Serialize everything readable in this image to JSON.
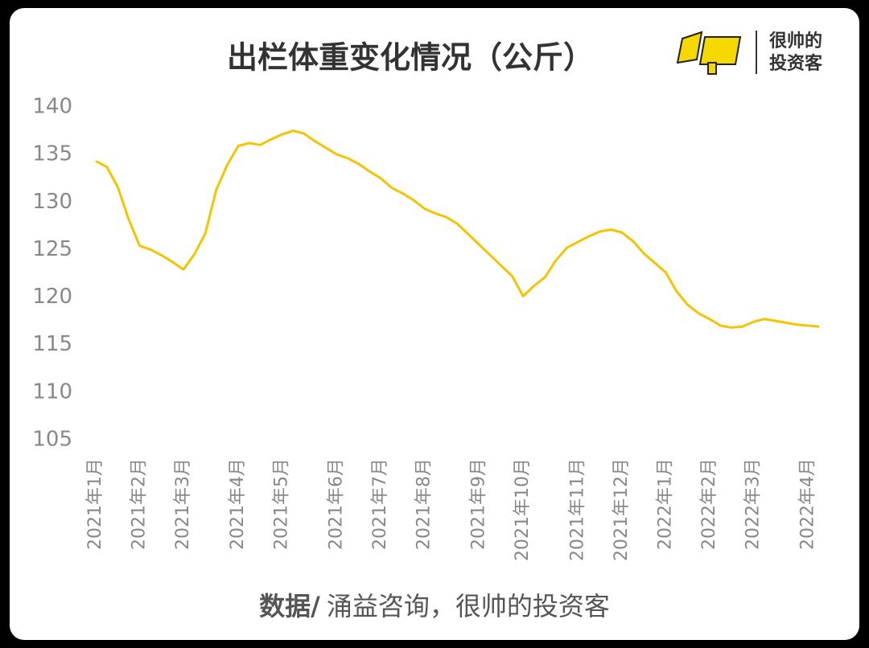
{
  "chart_data": {
    "type": "line",
    "title": "出栏体重变化情况（公斤）",
    "brand": [
      "很帅的",
      "投资客"
    ],
    "source_label": "数据/",
    "source": "涌益咨询，很帅的投资客",
    "categories": [
      "2021年1月",
      null,
      null,
      null,
      "2021年2月",
      null,
      null,
      null,
      "2021年3月",
      null,
      null,
      null,
      null,
      "2021年4月",
      null,
      null,
      null,
      "2021年5月",
      null,
      null,
      null,
      null,
      "2021年6月",
      null,
      null,
      null,
      "2021年7月",
      null,
      null,
      null,
      "2021年8月",
      null,
      null,
      null,
      null,
      "2021年9月",
      null,
      null,
      null,
      "2021年10月",
      null,
      null,
      null,
      null,
      "2021年11月",
      null,
      null,
      null,
      "2021年12月",
      null,
      null,
      null,
      "2022年1月",
      null,
      null,
      null,
      "2022年2月",
      null,
      null,
      null,
      "2022年3月",
      null,
      null,
      null,
      null,
      "2022年4月",
      null
    ],
    "series": [
      {
        "name": "出栏体重",
        "color": "#f5c400",
        "values": [
          134.3,
          133.7,
          131.6,
          128.2,
          125.4,
          125.0,
          124.4,
          123.7,
          122.9,
          124.5,
          126.7,
          131.3,
          133.9,
          135.9,
          136.2,
          136.0,
          136.6,
          137.1,
          137.5,
          137.2,
          136.4,
          135.7,
          135.0,
          134.6,
          134.0,
          133.2,
          132.5,
          131.5,
          130.9,
          130.2,
          129.3,
          128.8,
          128.4,
          127.7,
          126.6,
          125.5,
          124.4,
          123.3,
          122.2,
          120.1,
          121.2,
          122.1,
          123.9,
          125.2,
          125.8,
          126.4,
          126.9,
          127.1,
          126.8,
          125.9,
          124.6,
          123.6,
          122.6,
          120.6,
          119.2,
          118.3,
          117.7,
          117.0,
          116.8,
          116.9,
          117.4,
          117.7,
          117.5,
          117.3,
          117.1,
          117.0,
          116.9
        ]
      }
    ],
    "ylim": [
      105,
      140
    ],
    "yticks": [
      105,
      110,
      115,
      120,
      125,
      130,
      135,
      140
    ]
  }
}
